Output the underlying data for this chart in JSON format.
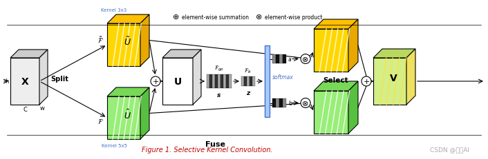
{
  "title": "Figure 1. Selective Kernel Convolution.",
  "watermark": "CSDN @微学AI",
  "bg_color": "#FFFFFF",
  "title_color": "#C00000",
  "watermark_color": "#AAAAAA",
  "legend_plus_text": "element-wise summation",
  "legend_times_text": "element-wise product",
  "yellow_face": "#FFD700",
  "yellow_top": "#FFC000",
  "yellow_right": "#E8A800",
  "green_face": "#98EE78",
  "green_top": "#78D858",
  "green_right": "#58C040",
  "gray_face": "#EEEEEE",
  "gray_top": "#CCCCCC",
  "gray_right": "#DDDDDD",
  "white_face": "#FFFFFF",
  "white_top": "#CCCCCC",
  "white_right": "#DDDDDD",
  "yg_face": "#D4EE88",
  "yg_top": "#B8D860",
  "yg_right": "#F0E060",
  "fig_w": 7.06,
  "fig_h": 2.32,
  "dpi": 100
}
